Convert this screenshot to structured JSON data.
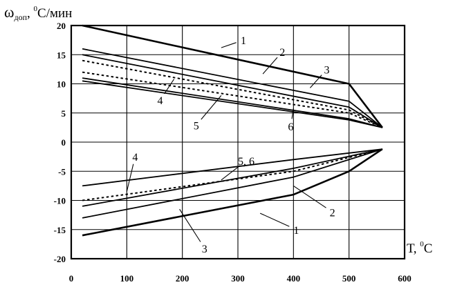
{
  "chart_data": {
    "type": "line",
    "ylabel": "ω",
    "ylabel_sub": "доп",
    "ylabel_sep": ", ",
    "ylabel_sup": "0",
    "ylabel_unit": "С/мин",
    "xlabel": "Т, ",
    "xlabel_sup": "0",
    "xlabel_unit": "С",
    "xlim": [
      0,
      600
    ],
    "ylim": [
      -20,
      20
    ],
    "x_ticks": [
      "0",
      "100",
      "200",
      "300",
      "400",
      "500",
      "600"
    ],
    "y_ticks": [
      "20",
      "15",
      "10",
      "5",
      "0",
      "-5",
      "-10",
      "-15",
      "-20"
    ],
    "grid": true,
    "series": [
      {
        "name": "1",
        "group": "upper",
        "style": "solid",
        "x": [
          20,
          500,
          560
        ],
        "y": [
          20,
          10,
          2.5
        ]
      },
      {
        "name": "2",
        "group": "upper",
        "style": "solid",
        "x": [
          20,
          500,
          560
        ],
        "y": [
          16,
          7,
          2.5
        ]
      },
      {
        "name": "3",
        "group": "upper",
        "style": "solid",
        "x": [
          20,
          500,
          560
        ],
        "y": [
          15,
          6,
          2.5
        ]
      },
      {
        "name": "4",
        "group": "upper",
        "style": "dashed",
        "x": [
          20,
          500,
          560
        ],
        "y": [
          14,
          5.5,
          2.5
        ]
      },
      {
        "name": "4",
        "group": "upper",
        "style": "dashed",
        "x": [
          20,
          500,
          560
        ],
        "y": [
          12,
          5,
          2.5
        ]
      },
      {
        "name": "5",
        "group": "upper",
        "style": "solid",
        "x": [
          20,
          500,
          560
        ],
        "y": [
          11,
          4,
          2.5
        ]
      },
      {
        "name": "6",
        "group": "upper",
        "style": "solid",
        "x": [
          20,
          500,
          560
        ],
        "y": [
          10.5,
          3.8,
          2.5
        ]
      },
      {
        "name": "1",
        "group": "lower",
        "style": "solid",
        "x": [
          20,
          400,
          500,
          560
        ],
        "y": [
          -16,
          -9,
          -5,
          -1.2
        ]
      },
      {
        "name": "2",
        "group": "lower",
        "style": "solid",
        "x": [
          20,
          400,
          560
        ],
        "y": [
          -13,
          -6,
          -1.2
        ]
      },
      {
        "name": "3",
        "group": "lower",
        "style": "solid",
        "x": [
          20,
          400,
          560
        ],
        "y": [
          -11,
          -4.5,
          -1.2
        ]
      },
      {
        "name": "4",
        "group": "lower",
        "style": "dashed",
        "x": [
          20,
          400,
          560
        ],
        "y": [
          -10,
          -5,
          -1.2
        ]
      },
      {
        "name": "5, 6",
        "group": "lower",
        "style": "solid",
        "x": [
          20,
          400,
          560
        ],
        "y": [
          -7.5,
          -3,
          -1.2
        ]
      }
    ],
    "annotations": [
      {
        "text": "1",
        "x": 310,
        "y": 17.5,
        "tx": 270,
        "ty": 16.2
      },
      {
        "text": "2",
        "x": 380,
        "y": 15.5,
        "tx": 345,
        "ty": 11.7
      },
      {
        "text": "3",
        "x": 460,
        "y": 12.5,
        "tx": 430,
        "ty": 9.3
      },
      {
        "text": "4",
        "x": 160,
        "y": 7.2,
        "tx": 185,
        "ty": 10.8
      },
      {
        "text": "5",
        "x": 225,
        "y": 2.9,
        "tx": 270,
        "ty": 8.0
      },
      {
        "text": "6",
        "x": 395,
        "y": 2.7,
        "tx": 400,
        "ty": 5.8
      },
      {
        "text": "4",
        "x": 115,
        "y": -2.5,
        "tx": 100,
        "ty": -8.5
      },
      {
        "text": "5, 6",
        "x": 315,
        "y": -3.2,
        "tx": 270,
        "ty": -6.5
      },
      {
        "text": "2",
        "x": 470,
        "y": -12.0,
        "tx": 400,
        "ty": -7.5
      },
      {
        "text": "1",
        "x": 405,
        "y": -15.0,
        "tx": 340,
        "ty": -12.2
      },
      {
        "text": "3",
        "x": 240,
        "y": -18.2,
        "tx": 195,
        "ty": -11.5
      }
    ]
  }
}
